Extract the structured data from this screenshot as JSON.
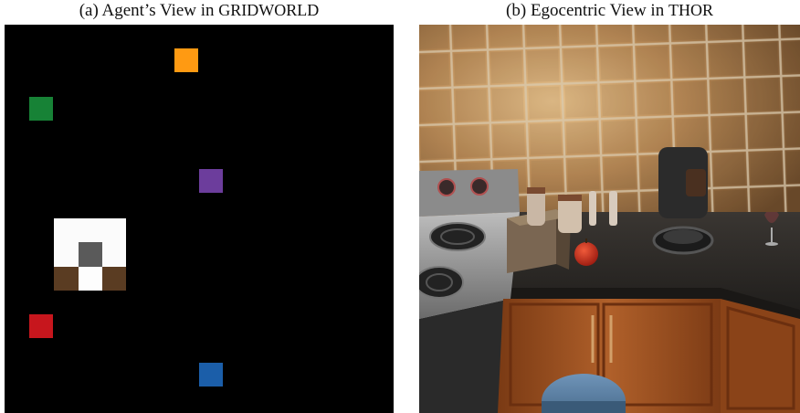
{
  "captions": {
    "a": {
      "prefix": "(a) Agent’s View in ",
      "env": "GRIDWORLD"
    },
    "b": {
      "prefix": "(b) Egocentric View in ",
      "env": "THOR"
    }
  },
  "gridworld": {
    "background": "#000000",
    "objects": [
      {
        "name": "orange-object",
        "color": "#ff9a12"
      },
      {
        "name": "green-object",
        "color": "#178236"
      },
      {
        "name": "purple-object",
        "color": "#6c3d9c"
      },
      {
        "name": "red-object",
        "color": "#c7161d"
      },
      {
        "name": "blue-object",
        "color": "#1b5ea9"
      }
    ],
    "agent": {
      "colors": [
        "#fbfbfb",
        "#5a5a5a",
        "#5a3c22"
      ]
    }
  },
  "thor_scene": {
    "objects": [
      "wall-tiles",
      "stove",
      "bread",
      "apple",
      "salt-shakers",
      "coffee-machine",
      "wine-glass",
      "countertop",
      "cabinets",
      "stool"
    ],
    "colors": {
      "tile": "#b78955",
      "grout": "#d7c7a9",
      "counter": "#2e2b28",
      "cabinet": "#9a4d1e",
      "apple": "#c72a1a"
    }
  }
}
